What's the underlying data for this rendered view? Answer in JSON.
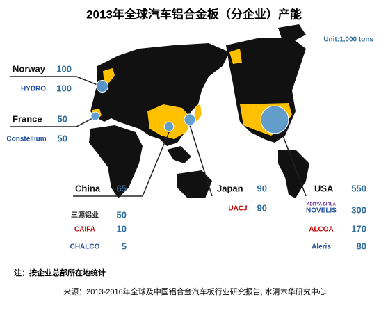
{
  "title": "2013年全球汽车铝合金板（分企业）产能",
  "unit": "Unit:1,000 tons",
  "regions": [
    {
      "name": "Norway",
      "value": 100,
      "companies": [
        {
          "logo": "HYDRO",
          "value": 100
        }
      ]
    },
    {
      "name": "France",
      "value": 50,
      "companies": [
        {
          "logo": "Constellium",
          "value": 50
        }
      ]
    },
    {
      "name": "China",
      "value": 65,
      "companies": [
        {
          "logo": "三源铝业",
          "value": 50
        },
        {
          "logo": "CAIFA",
          "value": 10
        },
        {
          "logo": "CHALCO",
          "value": 5
        }
      ]
    },
    {
      "name": "Japan",
      "value": 90,
      "companies": [
        {
          "logo": "UACJ",
          "value": 90
        }
      ]
    },
    {
      "name": "USA",
      "value": 550,
      "companies": [
        {
          "brand": "ADITYA BIRLA",
          "logo": "NOVELIS",
          "value": 300
        },
        {
          "logo": "ALCOA",
          "value": 170
        },
        {
          "logo": "Aleris",
          "value": 80
        }
      ]
    }
  ],
  "note": "注：按企业总部所在地统计",
  "source": "来源：2013-2016年全球及中国铝合金汽车板行业研究报告, 水清木华研究中心"
}
